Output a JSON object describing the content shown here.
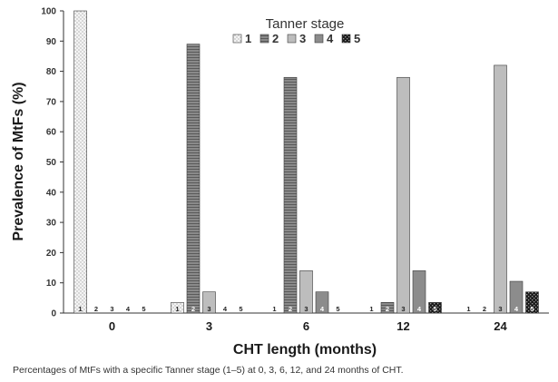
{
  "chart_data": {
    "type": "bar",
    "ylabel": "Prevalence of MtFs (%)",
    "xlabel": "CHT length (months)",
    "ylim": [
      0,
      100
    ],
    "yticks": [
      0,
      10,
      20,
      30,
      40,
      50,
      60,
      70,
      80,
      90,
      100
    ],
    "categories": [
      "0",
      "3",
      "6",
      "12",
      "24"
    ],
    "legend": {
      "title": "Tanner stage",
      "placement": "top-center"
    },
    "series": [
      {
        "name": "1",
        "values": [
          100,
          3.5,
          0,
          0,
          0
        ],
        "fill": "#f0f0f0",
        "pattern": "dots",
        "bar_label": "1"
      },
      {
        "name": "2",
        "values": [
          0,
          89,
          78,
          3.5,
          0
        ],
        "fill": "#7a7a7a",
        "pattern": "hlines",
        "bar_label": "2"
      },
      {
        "name": "3",
        "values": [
          0,
          7,
          14,
          78,
          82
        ],
        "fill": "#bdbdbd",
        "pattern": "none",
        "bar_label": "3"
      },
      {
        "name": "4",
        "values": [
          0,
          0,
          7,
          14,
          10.5
        ],
        "fill": "#8c8c8c",
        "pattern": "none",
        "bar_label": "4"
      },
      {
        "name": "5",
        "values": [
          0,
          0,
          0,
          3.5,
          7
        ],
        "fill": "#2a2a2a",
        "pattern": "checker",
        "bar_label": "5"
      }
    ]
  },
  "caption": "Percentages of MtFs with a specific Tanner stage (1–5) at 0, 3, 6, 12, and 24 months of CHT."
}
